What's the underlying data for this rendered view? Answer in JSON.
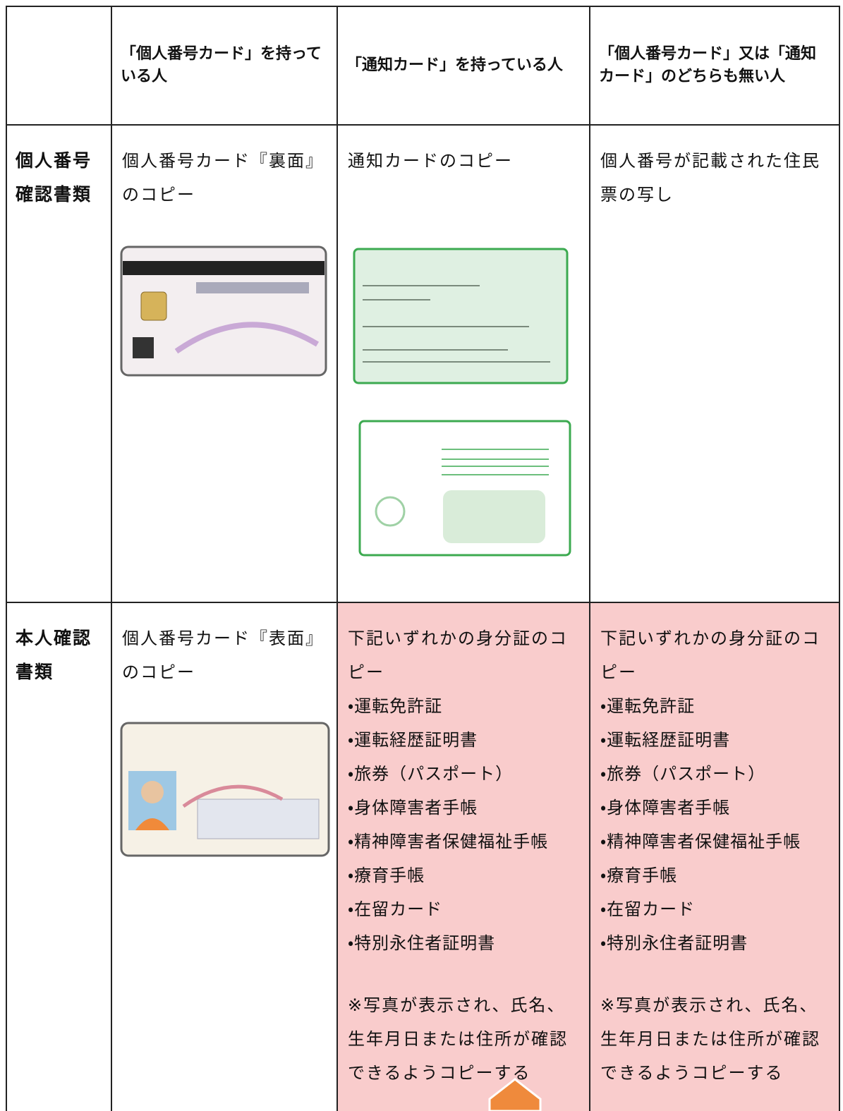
{
  "table": {
    "header": [
      "「個人番号カード」を持っている人",
      "「通知カード」を持っている人",
      "「個人番号カード」又は「通知カード」のどちらも無い人"
    ],
    "rows": [
      {
        "label": "個人番号確認書類",
        "cells": [
          {
            "text": "個人番号カード『裏面』のコピー"
          },
          {
            "text": "通知カードのコピー"
          },
          {
            "text": "個人番号が記載された住民票の写し"
          }
        ]
      },
      {
        "label": "本人確認書類",
        "cells": [
          {
            "text": "個人番号カード『表面』のコピー"
          },
          {
            "text": "下記いずれかの身分証のコピー",
            "items": [
              "・運転免許証",
              "・運転経歴証明書",
              "・旅券（パスポート）",
              "・身体障害者手帳",
              "・精神障害者保健福祉手帳",
              "・療育手帳",
              "・在留カード",
              "・特別永住者証明書"
            ],
            "note": "※写真が表示され、氏名、生年月日または住所が確認できるようコピーする"
          },
          {
            "text": "下記いずれかの身分証のコピー",
            "items": [
              "・運転免許証",
              "・運転経歴証明書",
              "・旅券（パスポート）",
              "・身体障害者手帳",
              "・精神障害者保健福祉手帳",
              "・療育手帳",
              "・在留カード",
              "・特別永住者証明書"
            ],
            "note": "※写真が表示され、氏名、生年月日または住所が確認できるようコピーする"
          }
        ]
      }
    ]
  }
}
